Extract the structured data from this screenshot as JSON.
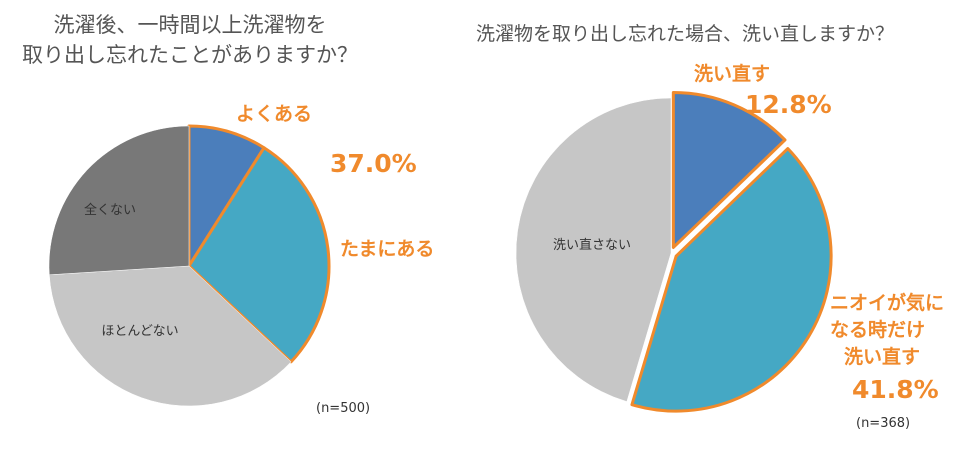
{
  "colors": {
    "blue": "#4B7EBB",
    "teal": "#45A8C4",
    "lightgray": "#C6C6C6",
    "darkgray": "#787878",
    "orange": "#F08A2C"
  },
  "chart_data": [
    {
      "type": "pie",
      "title": "洗濯後、一時間以上洗濯物を\n取り出し忘れたことがありますか？",
      "note": "(n=500)",
      "slices": [
        {
          "label": "よくある",
          "value": 9.0,
          "color": "#4B7EBB",
          "highlight": true
        },
        {
          "label": "たまにある",
          "value": 28.0,
          "color": "#45A8C4",
          "highlight": true
        },
        {
          "label": "ほとんどない",
          "value": 37.0,
          "color": "#C6C6C6"
        },
        {
          "label": "全くない",
          "value": 26.0,
          "color": "#787878"
        }
      ],
      "annotations": [
        {
          "text": "よくある"
        },
        {
          "text": "37.0%"
        },
        {
          "text": "たまにある"
        }
      ]
    },
    {
      "type": "pie",
      "title": "洗濯物を取り出し忘れた場合、洗い直しますか？",
      "note": "(n=368)",
      "slices": [
        {
          "label": "洗い直す",
          "value": 12.8,
          "color": "#4B7EBB",
          "highlight": true
        },
        {
          "label": "ニオイが気になる時だけ洗い直す",
          "value": 41.8,
          "color": "#45A8C4",
          "highlight": true
        },
        {
          "label": "洗い直さない",
          "value": 45.4,
          "color": "#C6C6C6"
        }
      ],
      "annotations": [
        {
          "text": "洗い直す"
        },
        {
          "text": "12.8%"
        },
        {
          "text": "ニオイが気に"
        },
        {
          "text": "なる時だけ"
        },
        {
          "text": "洗い直す"
        },
        {
          "text": "41.8%"
        }
      ]
    }
  ]
}
